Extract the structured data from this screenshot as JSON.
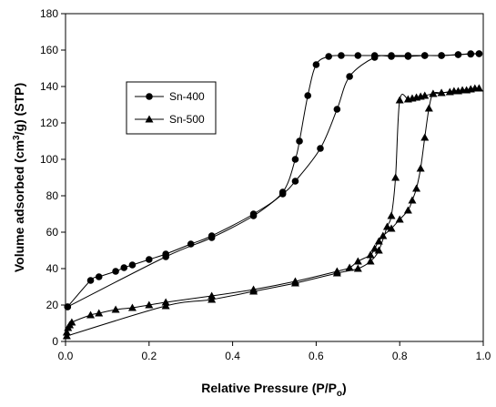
{
  "chart_data": {
    "type": "line",
    "title": "",
    "xlabel_main": "Relative Pressure (P/P",
    "xlabel_sub": "o",
    "xlabel_end": ")",
    "ylabel_main": "Volume adsorbed (cm",
    "ylabel_sup": "3",
    "ylabel_end": "/g) (STP)",
    "xlim": [
      0.0,
      1.0
    ],
    "ylim": [
      0,
      180
    ],
    "xticks": [
      "0.0",
      "0.2",
      "0.4",
      "0.6",
      "0.8",
      "1.0"
    ],
    "yticks": [
      "0",
      "20",
      "40",
      "60",
      "80",
      "100",
      "120",
      "140",
      "160",
      "180"
    ],
    "grid": false,
    "legend_position": "upper-left",
    "series": [
      {
        "name": "Sn-400",
        "marker": "circle",
        "color": "#000000",
        "adsorption": {
          "x": [
            0.005,
            0.06,
            0.08,
            0.12,
            0.14,
            0.16,
            0.2,
            0.24,
            0.3,
            0.35,
            0.45,
            0.52,
            0.55,
            0.56,
            0.58,
            0.6,
            0.63,
            0.66,
            0.7,
            0.74,
            0.78,
            0.82,
            0.86,
            0.9,
            0.94,
            0.97,
            0.99
          ],
          "y": [
            19,
            33.5,
            35.5,
            38.5,
            40.5,
            42,
            45,
            48,
            53.5,
            58,
            70,
            82,
            100,
            110,
            135,
            152,
            156.5,
            157,
            157,
            157,
            157,
            157,
            157,
            157,
            157.5,
            158,
            158
          ]
        },
        "desorption": {
          "x": [
            0.99,
            0.97,
            0.94,
            0.9,
            0.86,
            0.82,
            0.78,
            0.74,
            0.68,
            0.65,
            0.61,
            0.55,
            0.52,
            0.45,
            0.35,
            0.24,
            0.005
          ],
          "y": [
            158,
            157.8,
            157.5,
            157,
            157,
            156.5,
            156.5,
            156,
            145.5,
            127.5,
            106,
            88,
            81,
            69,
            57,
            46.5,
            19
          ]
        }
      },
      {
        "name": "Sn-500",
        "marker": "triangle",
        "color": "#000000",
        "adsorption": {
          "x": [
            0.003,
            0.006,
            0.01,
            0.015,
            0.06,
            0.08,
            0.12,
            0.16,
            0.2,
            0.24,
            0.35,
            0.45,
            0.55,
            0.65,
            0.68,
            0.7,
            0.73,
            0.74,
            0.75,
            0.76,
            0.78,
            0.8,
            0.82,
            0.83,
            0.84,
            0.85,
            0.86,
            0.87,
            0.88,
            0.9,
            0.92,
            0.94,
            0.96,
            0.97,
            0.98,
            0.99
          ],
          "y": [
            5,
            7.5,
            9,
            10.5,
            14.5,
            15.5,
            17.5,
            18.5,
            20,
            21.5,
            25,
            28.5,
            33,
            38.5,
            40.5,
            44,
            47.5,
            51,
            55,
            58,
            62,
            67,
            72,
            77.5,
            84,
            95,
            112,
            128,
            136,
            136.5,
            137,
            137.5,
            138,
            138.5,
            139,
            139
          ]
        },
        "desorption": {
          "x": [
            0.99,
            0.97,
            0.95,
            0.93,
            0.9,
            0.88,
            0.86,
            0.85,
            0.84,
            0.83,
            0.82,
            0.8,
            0.79,
            0.78,
            0.77,
            0.75,
            0.73,
            0.7,
            0.65,
            0.55,
            0.45,
            0.35,
            0.24,
            0.003
          ],
          "y": [
            139,
            138.5,
            138,
            137.5,
            136.5,
            136,
            135,
            134.5,
            134,
            133.5,
            133,
            132.5,
            90,
            69,
            63,
            50,
            44,
            40,
            37.5,
            32,
            27.5,
            23,
            19.5,
            3
          ]
        }
      }
    ]
  }
}
